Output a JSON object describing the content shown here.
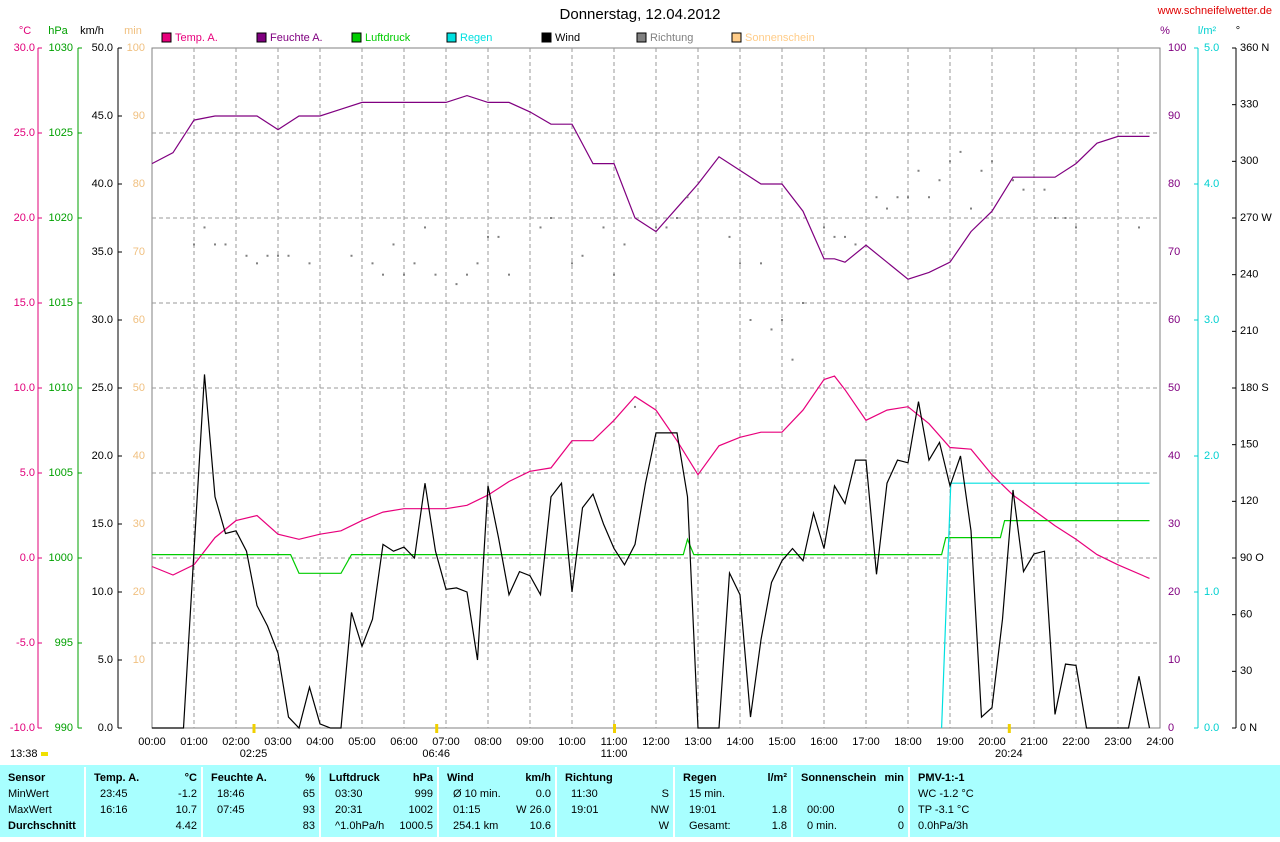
{
  "chart_data": {
    "type": "line",
    "title": "Donnerstag, 12.04.2012",
    "source": "www.schneifelwetter.de",
    "xlim": [
      0,
      24
    ],
    "xticks": [
      {
        "value": 0,
        "label": "00:00"
      },
      {
        "value": 1,
        "label": "01:00"
      },
      {
        "value": 2,
        "label": "02:00"
      },
      {
        "value": 3,
        "label": "03:00"
      },
      {
        "value": 4,
        "label": "04:00"
      },
      {
        "value": 5,
        "label": "05:00"
      },
      {
        "value": 6,
        "label": "06:00"
      },
      {
        "value": 7,
        "label": "07:00"
      },
      {
        "value": 8,
        "label": "08:00"
      },
      {
        "value": 9,
        "label": "09:00"
      },
      {
        "value": 10,
        "label": "10:00"
      },
      {
        "value": 11,
        "label": "11:00"
      },
      {
        "value": 12,
        "label": "12:00"
      },
      {
        "value": 13,
        "label": "13:00"
      },
      {
        "value": 14,
        "label": "14:00"
      },
      {
        "value": 15,
        "label": "15:00"
      },
      {
        "value": 16,
        "label": "16:00"
      },
      {
        "value": 17,
        "label": "17:00"
      },
      {
        "value": 18,
        "label": "18:00"
      },
      {
        "value": 19,
        "label": "19:00"
      },
      {
        "value": 20,
        "label": "20:00"
      },
      {
        "value": 21,
        "label": "21:00"
      },
      {
        "value": 22,
        "label": "22:00"
      },
      {
        "value": 23,
        "label": "23:00"
      },
      {
        "value": 24,
        "label": "24:00"
      }
    ],
    "grid": true,
    "axes": [
      {
        "label": "°C",
        "color": "#e0007a",
        "side": "left",
        "lim": [
          -10,
          30
        ],
        "ticks": [
          {
            "value": -10,
            "label": "-10.0"
          },
          {
            "value": -5,
            "label": "-5.0"
          },
          {
            "value": 0,
            "label": "0.0"
          },
          {
            "value": 5,
            "label": "5.0"
          },
          {
            "value": 10,
            "label": "10.0"
          },
          {
            "value": 15,
            "label": "15.0"
          },
          {
            "value": 20,
            "label": "20.0"
          },
          {
            "value": 25,
            "label": "25.0"
          },
          {
            "value": 30,
            "label": "30.0"
          }
        ]
      },
      {
        "label": "hPa",
        "color": "#00a000",
        "side": "left",
        "lim": [
          990,
          1030
        ],
        "ticks": [
          990,
          995,
          1000,
          1005,
          1010,
          1015,
          1020,
          1025,
          1030
        ]
      },
      {
        "label": "km/h",
        "color": "#000000",
        "side": "left",
        "lim": [
          0,
          50
        ],
        "ticks": [
          {
            "value": 0,
            "label": "0.0"
          },
          {
            "value": 5,
            "label": "5.0"
          },
          {
            "value": 10,
            "label": "10.0"
          },
          {
            "value": 15,
            "label": "15.0"
          },
          {
            "value": 20,
            "label": "20.0"
          },
          {
            "value": 25,
            "label": "25.0"
          },
          {
            "value": 30,
            "label": "30.0"
          },
          {
            "value": 35,
            "label": "35.0"
          },
          {
            "value": 40,
            "label": "40.0"
          },
          {
            "value": 45,
            "label": "45.0"
          },
          {
            "value": 50,
            "label": "50.0"
          }
        ]
      },
      {
        "label": "min",
        "color": "#f0c080",
        "side": "left",
        "lim": [
          0,
          100
        ],
        "ticks": [
          10,
          20,
          30,
          40,
          50,
          60,
          70,
          80,
          90,
          100
        ]
      },
      {
        "label": "%",
        "color": "#800080",
        "side": "right",
        "lim": [
          0,
          100
        ],
        "ticks": [
          0,
          10,
          20,
          30,
          40,
          50,
          60,
          70,
          80,
          90,
          100
        ]
      },
      {
        "label": "l/m²",
        "color": "#00d0d0",
        "side": "right",
        "lim": [
          0,
          5
        ],
        "ticks": [
          {
            "value": 0,
            "label": "0.0"
          },
          {
            "value": 1,
            "label": "1.0"
          },
          {
            "value": 2,
            "label": "2.0"
          },
          {
            "value": 3,
            "label": "3.0"
          },
          {
            "value": 4,
            "label": "4.0"
          },
          {
            "value": 5,
            "label": "5.0"
          }
        ]
      },
      {
        "label": "°",
        "color": "#000000",
        "side": "right",
        "lim": [
          0,
          360
        ],
        "ticks": [
          {
            "value": 0,
            "label": "0 N"
          },
          30,
          60,
          {
            "value": 90,
            "label": "90 O"
          },
          120,
          150,
          {
            "value": 180,
            "label": "180 S"
          },
          210,
          240,
          {
            "value": 270,
            "label": "270 W"
          },
          300,
          330,
          {
            "value": 360,
            "label": "360 N"
          }
        ]
      }
    ],
    "series": [
      {
        "name": "Temp. A.",
        "color": "#e8007c",
        "axis": 0,
        "style": "line",
        "x": [
          0,
          0.5,
          1,
          1.5,
          2,
          2.5,
          3,
          3.5,
          4,
          4.5,
          5,
          5.5,
          6,
          6.5,
          7,
          7.5,
          8,
          8.5,
          9,
          9.5,
          10,
          10.5,
          11,
          11.5,
          12,
          12.5,
          13,
          13.5,
          14,
          14.5,
          15,
          15.5,
          16,
          16.25,
          16.5,
          17,
          17.5,
          18,
          18.5,
          19,
          19.5,
          20,
          20.5,
          21,
          21.5,
          22,
          22.5,
          23,
          23.75
        ],
        "values": [
          -0.5,
          -1.0,
          -0.4,
          1.2,
          2.2,
          2.5,
          1.4,
          1.1,
          1.4,
          1.6,
          2.2,
          2.7,
          2.9,
          2.9,
          2.9,
          3.1,
          3.7,
          4.5,
          5.1,
          5.3,
          6.9,
          6.9,
          8.1,
          9.5,
          8.7,
          6.9,
          4.9,
          6.6,
          7.1,
          7.4,
          7.4,
          8.7,
          10.5,
          10.7,
          9.9,
          8.1,
          8.7,
          8.9,
          7.9,
          6.5,
          6.4,
          4.9,
          3.7,
          2.8,
          1.9,
          1.1,
          0.2,
          -0.4,
          -1.2
        ]
      },
      {
        "name": "Feuchte A.",
        "color": "#800080",
        "axis": 4,
        "style": "line",
        "x": [
          0,
          0.5,
          1,
          1.5,
          2,
          2.5,
          3,
          3.5,
          4,
          4.5,
          5,
          5.5,
          6,
          6.5,
          7,
          7.5,
          8,
          8.5,
          9,
          9.5,
          10,
          10.5,
          11,
          11.5,
          12,
          12.5,
          13,
          13.5,
          14,
          14.5,
          15,
          15.5,
          16,
          16.25,
          16.5,
          17,
          17.5,
          18,
          18.5,
          19,
          19.5,
          20,
          20.5,
          21,
          21.5,
          22,
          22.5,
          23,
          23.75
        ],
        "values": [
          83,
          84.6,
          89.4,
          90,
          90,
          90,
          88,
          90,
          90,
          91,
          92,
          92,
          92,
          92,
          92,
          93,
          92,
          92,
          90.6,
          88.8,
          88.8,
          83,
          83,
          75,
          73,
          76.5,
          80,
          84,
          82,
          80,
          80,
          76,
          69,
          69,
          68.5,
          71,
          68.5,
          66,
          67,
          68.5,
          73,
          76,
          81,
          81,
          81,
          83,
          86,
          87,
          87
        ]
      },
      {
        "name": "Luftdruck",
        "color": "#00cc00",
        "axis": 1,
        "style": "line",
        "x": [
          0,
          3.3,
          3.5,
          4.5,
          4.75,
          12.65,
          12.75,
          12.9,
          18.8,
          18.9,
          20.2,
          20.3,
          23.75
        ],
        "values": [
          1000.2,
          1000.2,
          999.1,
          999.1,
          1000.2,
          1000.2,
          1001.1,
          1000.2,
          1000.2,
          1001.2,
          1001.2,
          1002.2,
          1002.2
        ]
      },
      {
        "name": "Regen",
        "color": "#00e0e0",
        "axis": 5,
        "style": "line",
        "x": [
          18.8,
          19.02,
          23.75
        ],
        "values": [
          0,
          1.8,
          1.8
        ]
      },
      {
        "name": "Wind",
        "color": "#000000",
        "axis": 2,
        "style": "line",
        "x": [
          0,
          0.25,
          0.5,
          0.75,
          1,
          1.25,
          1.5,
          1.75,
          2,
          2.25,
          2.5,
          2.75,
          3,
          3.25,
          3.5,
          3.75,
          4,
          4.25,
          4.5,
          4.75,
          5,
          5.25,
          5.5,
          5.75,
          6,
          6.25,
          6.5,
          6.75,
          7,
          7.25,
          7.5,
          7.75,
          8,
          8.25,
          8.5,
          8.75,
          9,
          9.25,
          9.5,
          9.75,
          10,
          10.25,
          10.5,
          10.75,
          11,
          11.25,
          11.5,
          11.75,
          12,
          12.25,
          12.5,
          12.75,
          13,
          13.25,
          13.5,
          13.75,
          14,
          14.25,
          14.5,
          14.75,
          15,
          15.25,
          15.5,
          15.75,
          16,
          16.25,
          16.5,
          16.75,
          17,
          17.25,
          17.5,
          17.75,
          18,
          18.25,
          18.5,
          18.75,
          19,
          19.25,
          19.5,
          19.75,
          20,
          20.25,
          20.5,
          20.75,
          21,
          21.25,
          21.5,
          21.75,
          22,
          22.25,
          22.5,
          22.75,
          23,
          23.25,
          23.5,
          23.75
        ],
        "values": [
          0,
          0,
          0,
          0,
          13,
          26,
          17,
          14.3,
          14.5,
          13,
          9,
          7.5,
          5.5,
          0.8,
          0,
          3,
          0.3,
          0,
          0,
          8.5,
          6,
          8,
          13.5,
          13,
          13.3,
          12.5,
          18,
          13,
          10.2,
          10.3,
          10,
          5,
          17.8,
          14,
          9.8,
          11.5,
          11.2,
          9.8,
          17,
          18,
          10,
          16.2,
          17.2,
          15,
          13.2,
          12,
          13.5,
          18,
          21.7,
          21.7,
          21.7,
          17,
          0,
          0,
          0,
          11.4,
          9.8,
          0.8,
          6.5,
          10.7,
          12.3,
          13.2,
          12.3,
          15.8,
          13.2,
          17.8,
          16.5,
          19.7,
          19.7,
          11.3,
          18,
          19.7,
          19.5,
          24,
          19.7,
          21,
          17.8,
          20,
          14.5,
          0.8,
          1.5,
          8,
          17.5,
          11.5,
          12.8,
          13,
          1,
          4.7,
          4.6,
          0,
          0,
          0,
          0,
          0,
          3.8,
          0
        ]
      },
      {
        "name": "Richtung",
        "color": "#808080",
        "axis": 6,
        "style": "dots",
        "x": [
          1,
          1.25,
          1.5,
          1.75,
          2.25,
          2.5,
          2.75,
          3,
          3.25,
          3.75,
          4.75,
          5.25,
          5.5,
          5.75,
          6,
          6.25,
          6.5,
          6.75,
          7.25,
          7.5,
          7.75,
          8,
          8.25,
          8.5,
          9.25,
          9.5,
          10,
          10.25,
          10.75,
          11,
          11.25,
          11.5,
          12,
          12.25,
          12.5,
          12.75,
          13.75,
          14,
          14.25,
          14.5,
          14.75,
          15,
          15.25,
          15.5,
          16,
          16.25,
          16.5,
          16.75,
          17.25,
          17.5,
          17.75,
          18,
          18.25,
          18.5,
          18.75,
          19,
          19.25,
          19.5,
          19.75,
          20,
          20.5,
          20.75,
          21.25,
          21.5,
          21.75,
          22,
          23.5
        ],
        "values": [
          256,
          265,
          256,
          256,
          250,
          246,
          250,
          250,
          250,
          246,
          250,
          246,
          240,
          256,
          240,
          246,
          265,
          240,
          235,
          240,
          246,
          260,
          260,
          240,
          265,
          270,
          246,
          250,
          265,
          240,
          256,
          170,
          265,
          265,
          270,
          281,
          260,
          246,
          216,
          246,
          211,
          216,
          195,
          225,
          265,
          260,
          260,
          256,
          281,
          275,
          281,
          281,
          295,
          281,
          290,
          300,
          305,
          275,
          295,
          300,
          290,
          285,
          285,
          270,
          270,
          265,
          265
        ]
      },
      {
        "name": "Sonnenschein",
        "color": "#ffcc88",
        "axis": 3,
        "style": "line",
        "x": [],
        "values": []
      }
    ],
    "day_length": "13:38",
    "events": [
      {
        "time": 2.4167,
        "label": "02:25"
      },
      {
        "time": 6.7667,
        "label": "06:46"
      },
      {
        "time": 11,
        "label": "11:00"
      },
      {
        "time": 20.4,
        "label": "20:24"
      }
    ]
  },
  "stats_table": {
    "row_labels": [
      "Sensor",
      "MinWert",
      "MaxWert",
      "Durchschnitt"
    ],
    "columns": [
      {
        "header": "Temp. A.",
        "unit": "°C",
        "rows": [
          [
            "23:45",
            "-1.2"
          ],
          [
            "16:16",
            "10.7"
          ],
          [
            null,
            "4.42"
          ]
        ]
      },
      {
        "header": "Feuchte A.",
        "unit": "%",
        "rows": [
          [
            "18:46",
            "65"
          ],
          [
            "07:45",
            "93"
          ],
          [
            null,
            "83"
          ]
        ]
      },
      {
        "header": "Luftdruck",
        "unit": "hPa",
        "rows": [
          [
            "03:30",
            "999"
          ],
          [
            "20:31",
            "1002"
          ],
          [
            "^1.0hPa/h",
            "1000.5"
          ]
        ]
      },
      {
        "header": "Wind",
        "unit": "km/h",
        "rows": [
          [
            "Ø 10 min.",
            "0.0"
          ],
          [
            "01:15",
            "W 26.0"
          ],
          [
            "254.1 km",
            "10.6"
          ]
        ]
      },
      {
        "header": "Richtung",
        "rows": [
          [
            "11:30",
            "S"
          ],
          [
            "19:01",
            "NW"
          ],
          [
            null,
            "W"
          ]
        ]
      },
      {
        "header": "Regen",
        "unit": "l/m²",
        "rows": [
          [
            "15 min.",
            null
          ],
          [
            "19:01",
            "1.8"
          ],
          [
            "Gesamt:",
            "1.8"
          ]
        ]
      },
      {
        "header": "Sonnenschein",
        "unit": "min",
        "rows": [
          [
            null,
            null
          ],
          [
            "00:00",
            "0"
          ],
          [
            "0 min.",
            "0"
          ]
        ]
      },
      {
        "header": "PMV-1:-1",
        "rows": [
          [
            "WC -1.2 °C"
          ],
          [
            "TP -3.1 °C"
          ],
          [
            "0.0hPa/3h"
          ]
        ]
      }
    ]
  }
}
